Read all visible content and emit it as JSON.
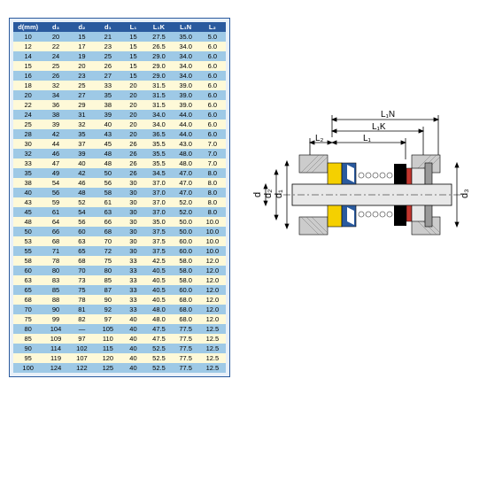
{
  "table": {
    "headers": [
      "d(mm)",
      "d₃",
      "d₂",
      "d₁",
      "L₁",
      "L₁K",
      "L₁N",
      "L₂"
    ],
    "rows": [
      [
        "10",
        "20",
        "15",
        "21",
        "15",
        "27.5",
        "35.0",
        "5.0"
      ],
      [
        "12",
        "22",
        "17",
        "23",
        "15",
        "26.5",
        "34.0",
        "6.0"
      ],
      [
        "14",
        "24",
        "19",
        "25",
        "15",
        "29.0",
        "34.0",
        "6.0"
      ],
      [
        "15",
        "25",
        "20",
        "26",
        "15",
        "29.0",
        "34.0",
        "6.0"
      ],
      [
        "16",
        "26",
        "23",
        "27",
        "15",
        "29.0",
        "34.0",
        "6.0"
      ],
      [
        "18",
        "32",
        "25",
        "33",
        "20",
        "31.5",
        "39.0",
        "6.0"
      ],
      [
        "20",
        "34",
        "27",
        "35",
        "20",
        "31.5",
        "39.0",
        "6.0"
      ],
      [
        "22",
        "36",
        "29",
        "38",
        "20",
        "31.5",
        "39.0",
        "6.0"
      ],
      [
        "24",
        "38",
        "31",
        "39",
        "20",
        "34.0",
        "44.0",
        "6.0"
      ],
      [
        "25",
        "39",
        "32",
        "40",
        "20",
        "34.0",
        "44.0",
        "6.0"
      ],
      [
        "28",
        "42",
        "35",
        "43",
        "20",
        "36.5",
        "44.0",
        "6.0"
      ],
      [
        "30",
        "44",
        "37",
        "45",
        "26",
        "35.5",
        "43.0",
        "7.0"
      ],
      [
        "32",
        "46",
        "39",
        "48",
        "26",
        "35.5",
        "48.0",
        "7.0"
      ],
      [
        "33",
        "47",
        "40",
        "48",
        "26",
        "35.5",
        "48.0",
        "7.0"
      ],
      [
        "35",
        "49",
        "42",
        "50",
        "26",
        "34.5",
        "47.0",
        "8.0"
      ],
      [
        "38",
        "54",
        "46",
        "56",
        "30",
        "37.0",
        "47.0",
        "8.0"
      ],
      [
        "40",
        "56",
        "48",
        "58",
        "30",
        "37.0",
        "47.0",
        "8.0"
      ],
      [
        "43",
        "59",
        "52",
        "61",
        "30",
        "37.0",
        "52.0",
        "8.0"
      ],
      [
        "45",
        "61",
        "54",
        "63",
        "30",
        "37.0",
        "52.0",
        "8.0"
      ],
      [
        "48",
        "64",
        "56",
        "66",
        "30",
        "35.0",
        "50.0",
        "10.0"
      ],
      [
        "50",
        "66",
        "60",
        "68",
        "30",
        "37.5",
        "50.0",
        "10.0"
      ],
      [
        "53",
        "68",
        "63",
        "70",
        "30",
        "37.5",
        "60.0",
        "10.0"
      ],
      [
        "55",
        "71",
        "65",
        "72",
        "30",
        "37.5",
        "60.0",
        "10.0"
      ],
      [
        "58",
        "78",
        "68",
        "75",
        "33",
        "42.5",
        "58.0",
        "12.0"
      ],
      [
        "60",
        "80",
        "70",
        "80",
        "33",
        "40.5",
        "58.0",
        "12.0"
      ],
      [
        "63",
        "83",
        "73",
        "85",
        "33",
        "40.5",
        "58.0",
        "12.0"
      ],
      [
        "65",
        "85",
        "75",
        "87",
        "33",
        "40.5",
        "60.0",
        "12.0"
      ],
      [
        "68",
        "88",
        "78",
        "90",
        "33",
        "40.5",
        "68.0",
        "12.0"
      ],
      [
        "70",
        "90",
        "81",
        "92",
        "33",
        "48.0",
        "68.0",
        "12.0"
      ],
      [
        "75",
        "99",
        "82",
        "97",
        "40",
        "48.0",
        "68.0",
        "12.0"
      ],
      [
        "80",
        "104",
        "—",
        "105",
        "40",
        "47.5",
        "77.5",
        "12.5"
      ],
      [
        "85",
        "109",
        "97",
        "110",
        "40",
        "47.5",
        "77.5",
        "12.5"
      ],
      [
        "90",
        "114",
        "102",
        "115",
        "40",
        "52.5",
        "77.5",
        "12.5"
      ],
      [
        "95",
        "119",
        "107",
        "120",
        "40",
        "52.5",
        "77.5",
        "12.5"
      ],
      [
        "100",
        "124",
        "122",
        "125",
        "40",
        "52.5",
        "77.5",
        "12.5"
      ]
    ]
  },
  "diagram": {
    "labels": {
      "d1": "d₁",
      "d2": "d₂",
      "d": "d",
      "d3": "d₃",
      "L1": "L₁",
      "L1K": "L₁K",
      "L1N": "L₁N",
      "L2": "L₂"
    },
    "colors": {
      "blue": "#2a5a9e",
      "yellow": "#f5d000",
      "red": "#c2362e",
      "black": "#000",
      "gray": "#ccc",
      "shaft": "#e8e8e8",
      "hatch": "#999"
    }
  }
}
